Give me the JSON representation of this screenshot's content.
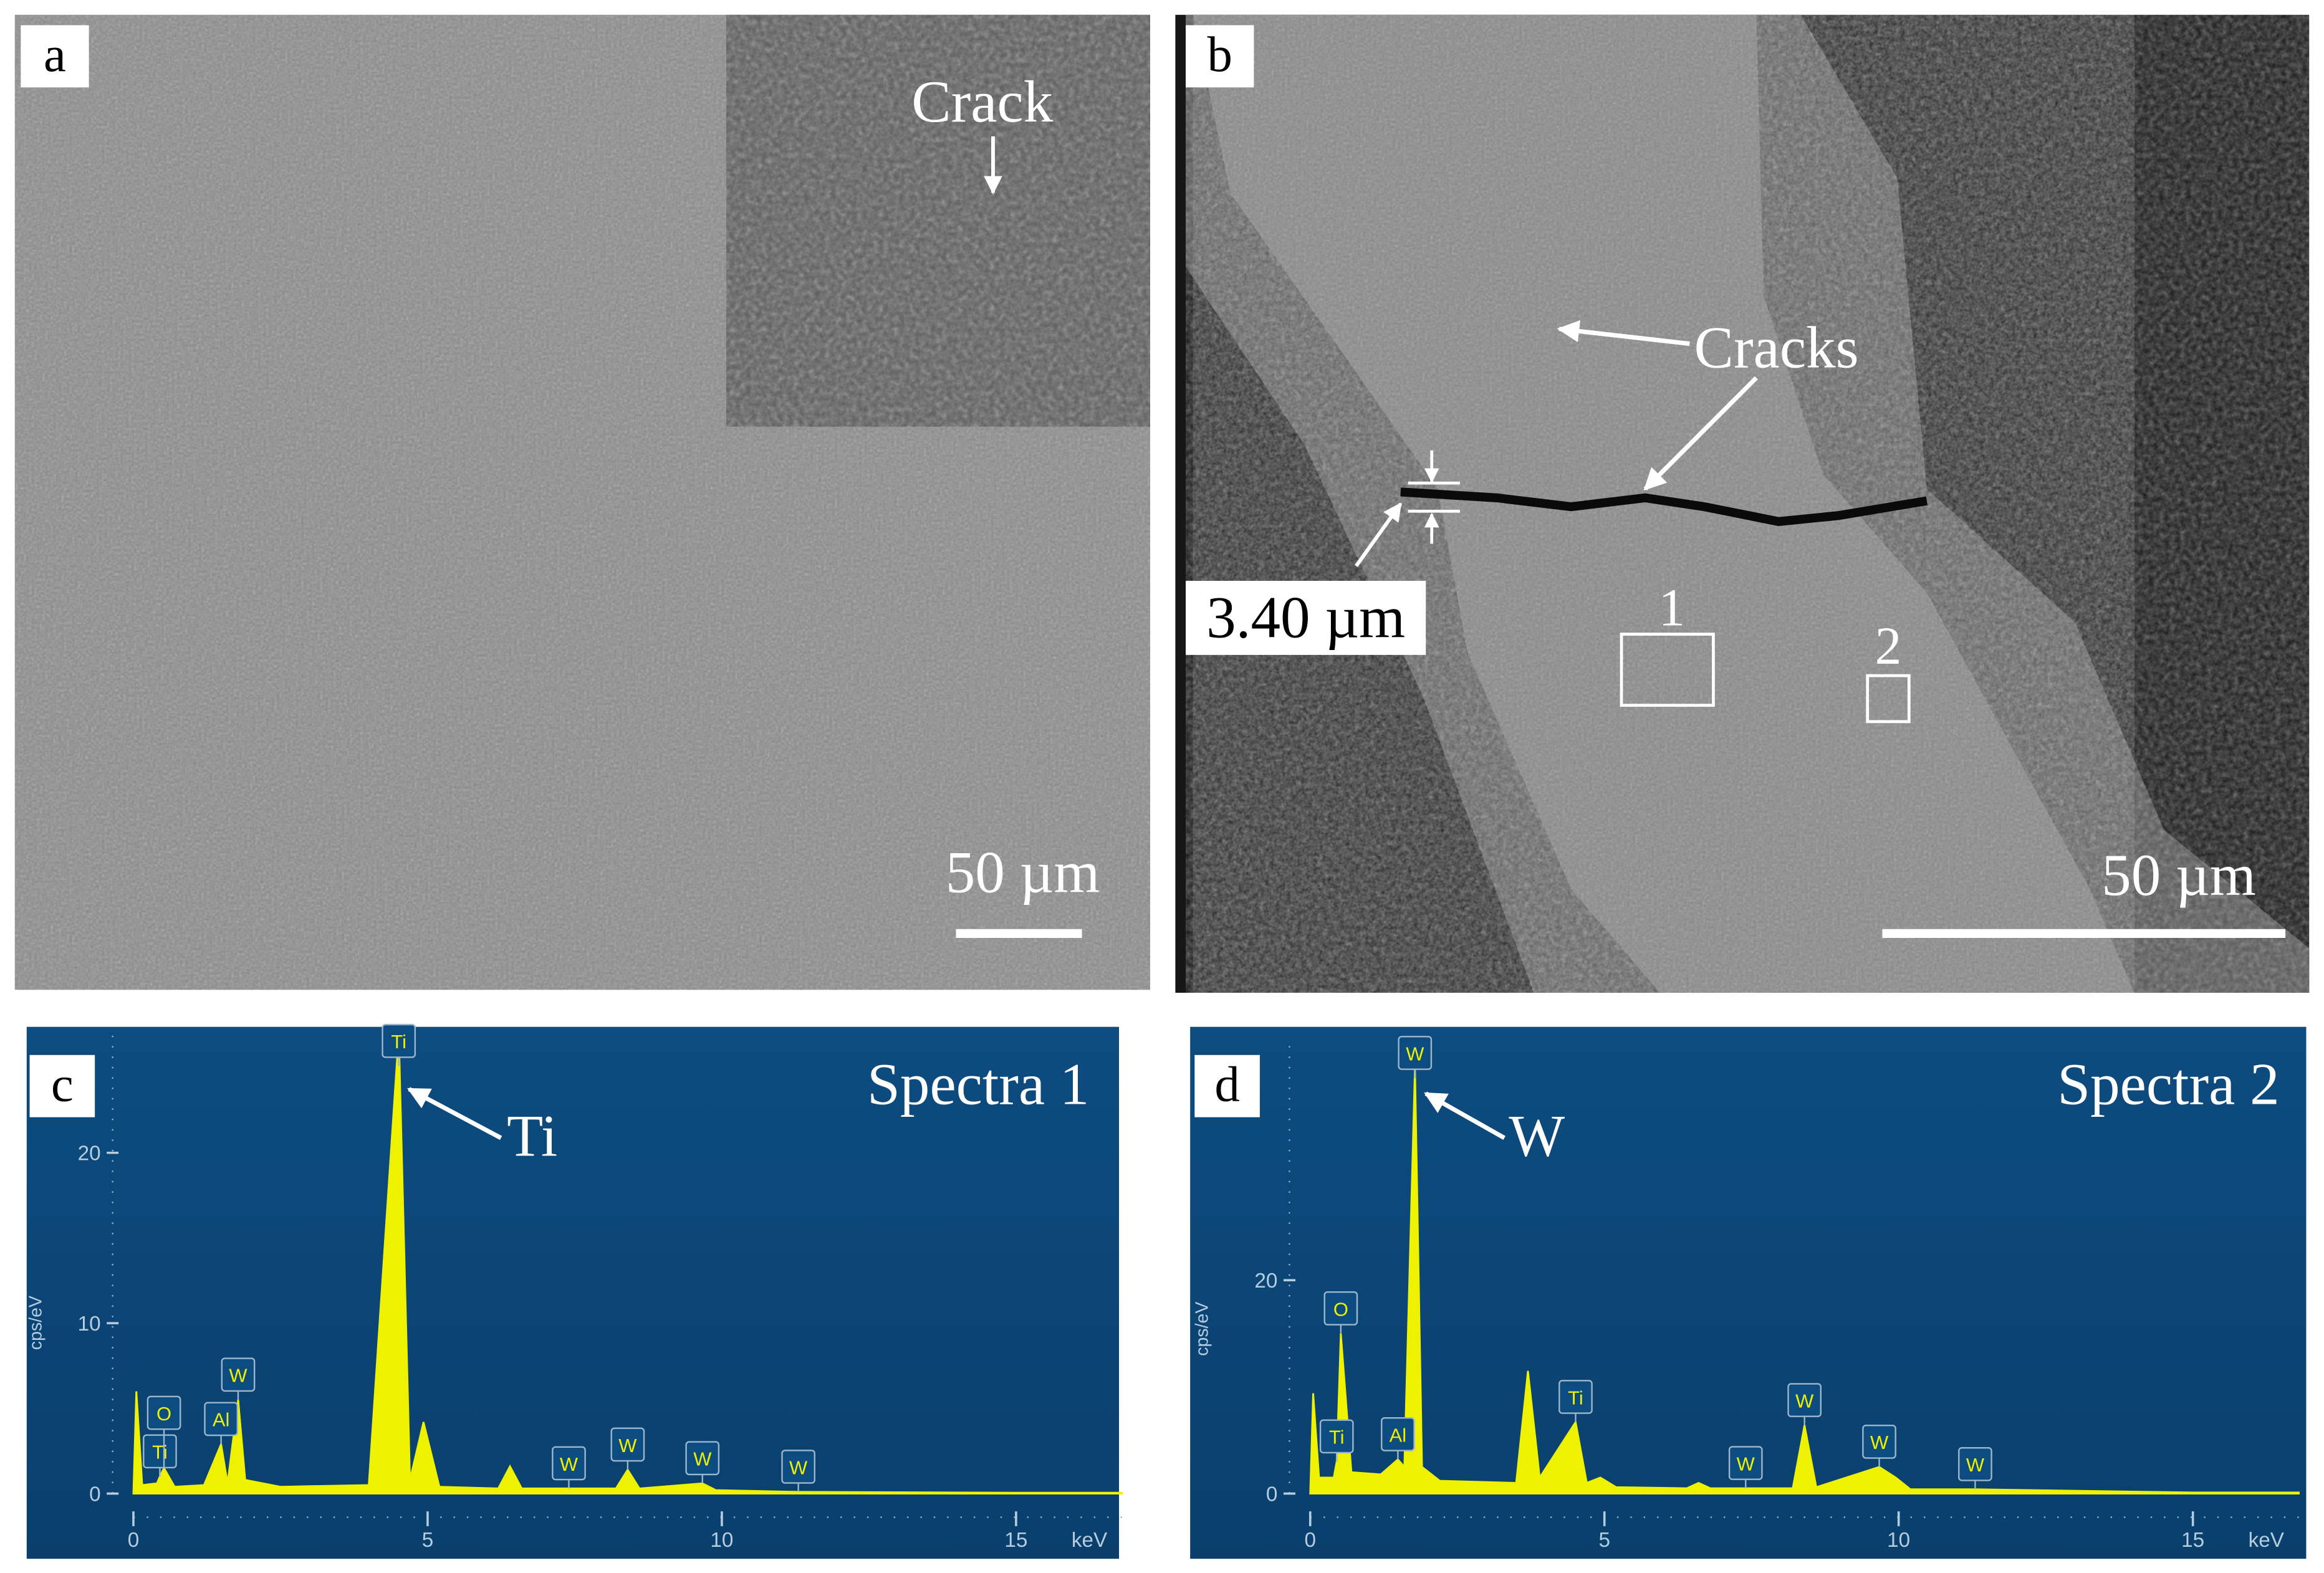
{
  "panels": [
    {
      "label": "a",
      "inset_annotation": "Crack",
      "scale_bar": "50 µm"
    },
    {
      "label": "b",
      "annotations": [
        "Cracks",
        "3.40 µm",
        "1",
        "2"
      ],
      "scale_bar": "50 µm"
    }
  ],
  "chart_data": [
    {
      "type": "area",
      "panel_label": "c",
      "title": "Spectra 1",
      "annotation": "Ti",
      "xlabel": "keV",
      "ylabel": "cps/eV",
      "color": "#eef200",
      "x": [
        0,
        0.05,
        0.15,
        0.4,
        0.45,
        0.52,
        0.7,
        1.2,
        1.49,
        1.6,
        1.78,
        1.9,
        2.5,
        4.0,
        4.51,
        4.7,
        4.93,
        5.2,
        6.2,
        6.4,
        6.6,
        7.4,
        8.2,
        8.4,
        8.6,
        9.67,
        9.9,
        11.3,
        15,
        16.8
      ],
      "values": [
        0,
        6,
        0.5,
        0.6,
        1.0,
        1.5,
        0.4,
        0.5,
        2.9,
        0.6,
        5.5,
        0.8,
        0.4,
        0.5,
        27,
        0.8,
        4.2,
        0.4,
        0.3,
        1.6,
        0.3,
        0.3,
        0.3,
        1.4,
        0.3,
        0.6,
        0.2,
        0.1,
        0.05,
        0.05
      ],
      "xlim": [
        0,
        16.8
      ],
      "ylim": [
        0,
        27
      ],
      "xticks": [
        0,
        5,
        10,
        15
      ],
      "yticks": [
        0,
        10,
        20
      ],
      "peak_labels": [
        {
          "label": "Ti",
          "x": 0.45
        },
        {
          "label": "O",
          "x": 0.52
        },
        {
          "label": "Al",
          "x": 1.49
        },
        {
          "label": "W",
          "x": 1.78
        },
        {
          "label": "Ti",
          "x": 4.51
        },
        {
          "label": "W",
          "x": 7.4
        },
        {
          "label": "W",
          "x": 8.4
        },
        {
          "label": "W",
          "x": 9.67
        },
        {
          "label": "W",
          "x": 11.3
        }
      ]
    },
    {
      "type": "area",
      "panel_label": "d",
      "title": "Spectra 2",
      "annotation": "W",
      "xlabel": "keV",
      "ylabel": "cps/eV",
      "color": "#eef200",
      "x": [
        0,
        0.05,
        0.15,
        0.4,
        0.45,
        0.52,
        0.7,
        1.2,
        1.49,
        1.6,
        1.78,
        1.9,
        2.2,
        3.5,
        3.7,
        3.9,
        4.51,
        4.7,
        4.93,
        5.2,
        6.4,
        6.6,
        6.8,
        7.4,
        8.2,
        8.4,
        8.6,
        9.67,
        9.95,
        10.2,
        11.3,
        15,
        16.8
      ],
      "values": [
        0,
        9.4,
        1.5,
        1.5,
        3,
        15,
        2,
        1.8,
        3.2,
        2.5,
        40,
        2.5,
        1.2,
        1,
        11.5,
        1.5,
        6.7,
        1,
        1.5,
        0.6,
        0.5,
        1,
        0.5,
        0.5,
        0.5,
        6.4,
        0.6,
        2.5,
        1.5,
        0.4,
        0.4,
        0.1,
        0.1
      ],
      "xlim": [
        0,
        16.8
      ],
      "ylim": [
        0,
        42
      ],
      "xticks": [
        0,
        5,
        10,
        15
      ],
      "yticks": [
        0,
        20
      ],
      "peak_labels": [
        {
          "label": "Ti",
          "x": 0.45
        },
        {
          "label": "O",
          "x": 0.52
        },
        {
          "label": "Al",
          "x": 1.49
        },
        {
          "label": "W",
          "x": 1.78
        },
        {
          "label": "Ti",
          "x": 4.51
        },
        {
          "label": "W",
          "x": 7.4
        },
        {
          "label": "W",
          "x": 8.4
        },
        {
          "label": "W",
          "x": 9.67
        },
        {
          "label": "W",
          "x": 11.3
        }
      ]
    }
  ]
}
